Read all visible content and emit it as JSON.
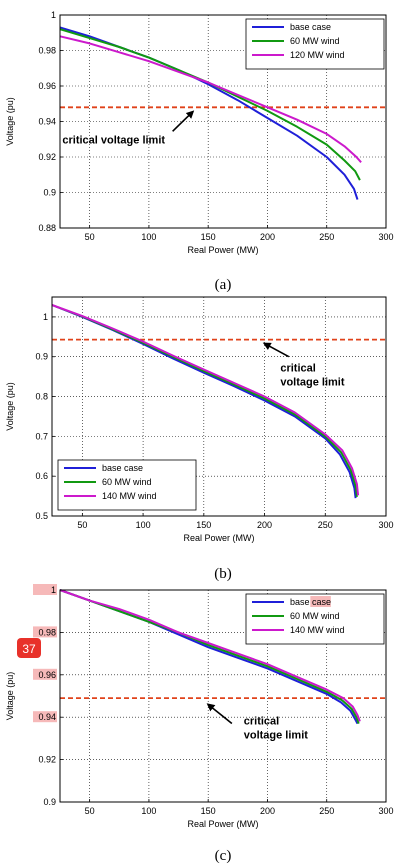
{
  "colors": {
    "base": "#1f1fd8",
    "wind60": "#119911",
    "wind_high": "#cc19cc",
    "limit": "#e0421a",
    "highlight": "#f6b9b9",
    "badge": "#e8312a"
  },
  "badge": {
    "text": "37"
  },
  "chart_data": [
    {
      "type": "line",
      "caption": "(a)",
      "xlabel": "Real Power (MW)",
      "ylabel": "Voltage (pu)",
      "xlim": [
        25,
        300
      ],
      "ylim": [
        0.88,
        1.0
      ],
      "xticks": [
        50,
        100,
        150,
        200,
        250,
        300
      ],
      "xticklabels": [
        "50",
        "100",
        "150",
        "200",
        "250",
        "300"
      ],
      "yticks": [
        0.88,
        0.9,
        0.92,
        0.94,
        0.96,
        0.98,
        1.0
      ],
      "yticklabels": [
        "0.88",
        "0.9",
        "0.92",
        "0.94",
        "0.96",
        "0.98",
        "1"
      ],
      "grid": true,
      "legend_position": "top-right",
      "limit_value": 0.948,
      "annotation": {
        "lines": [
          "critical voltage limit"
        ],
        "text_at": [
          27,
          0.9275
        ],
        "arrow_from": [
          120,
          0.9345
        ],
        "arrow_to": [
          137,
          0.9455
        ]
      },
      "series": [
        {
          "name": "base case",
          "color_key": "base",
          "x": [
            25,
            50,
            75,
            100,
            125,
            150,
            175,
            200,
            225,
            250,
            265,
            273,
            276
          ],
          "y": [
            0.993,
            0.988,
            0.982,
            0.976,
            0.969,
            0.961,
            0.952,
            0.942,
            0.932,
            0.92,
            0.91,
            0.902,
            0.896
          ]
        },
        {
          "name": "60 MW wind",
          "color_key": "wind60",
          "x": [
            25,
            50,
            75,
            100,
            125,
            150,
            175,
            200,
            225,
            250,
            265,
            274,
            278
          ],
          "y": [
            0.992,
            0.987,
            0.982,
            0.976,
            0.969,
            0.962,
            0.954,
            0.946,
            0.937,
            0.927,
            0.918,
            0.912,
            0.907
          ]
        },
        {
          "name": "120 MW wind",
          "color_key": "wind_high",
          "x": [
            25,
            50,
            75,
            100,
            125,
            150,
            175,
            200,
            225,
            250,
            265,
            275,
            279
          ],
          "y": [
            0.988,
            0.984,
            0.979,
            0.974,
            0.968,
            0.962,
            0.955,
            0.948,
            0.941,
            0.933,
            0.926,
            0.92,
            0.917
          ]
        }
      ]
    },
    {
      "type": "line",
      "caption": "(b)",
      "xlabel": "Real Power (MW)",
      "ylabel": "Voltage (pu)",
      "xlim": [
        25,
        300
      ],
      "ylim": [
        0.5,
        1.05
      ],
      "xticks": [
        50,
        100,
        150,
        200,
        250,
        300
      ],
      "xticklabels": [
        "50",
        "100",
        "150",
        "200",
        "250",
        "300"
      ],
      "yticks": [
        0.5,
        0.6,
        0.7,
        0.8,
        0.9,
        1.0
      ],
      "yticklabels": [
        "0.5",
        "0.6",
        "0.7",
        "0.8",
        "0.9",
        "1"
      ],
      "grid": true,
      "legend_position": "bottom-left",
      "limit_value": 0.943,
      "annotation": {
        "lines": [
          "critical",
          "voltage limit"
        ],
        "text_at": [
          213,
          0.863
        ],
        "arrow_from": [
          220,
          0.9
        ],
        "arrow_to": [
          200,
          0.933
        ]
      },
      "series": [
        {
          "name": "base case",
          "color_key": "base",
          "x": [
            25,
            50,
            75,
            100,
            125,
            150,
            175,
            200,
            225,
            250,
            262,
            270,
            274,
            275
          ],
          "y": [
            1.03,
            1.0,
            0.967,
            0.932,
            0.895,
            0.86,
            0.826,
            0.79,
            0.75,
            0.695,
            0.655,
            0.61,
            0.57,
            0.545
          ]
        },
        {
          "name": "60 MW wind",
          "color_key": "wind60",
          "x": [
            25,
            50,
            75,
            100,
            125,
            150,
            175,
            200,
            225,
            250,
            263,
            271,
            275,
            276
          ],
          "y": [
            1.03,
            1.001,
            0.969,
            0.935,
            0.899,
            0.864,
            0.83,
            0.795,
            0.755,
            0.7,
            0.66,
            0.615,
            0.575,
            0.548
          ]
        },
        {
          "name": "140 MW wind",
          "color_key": "wind_high",
          "x": [
            25,
            50,
            75,
            100,
            125,
            150,
            175,
            200,
            225,
            250,
            264,
            272,
            276,
            277
          ],
          "y": [
            1.03,
            1.002,
            0.971,
            0.938,
            0.902,
            0.868,
            0.834,
            0.8,
            0.76,
            0.705,
            0.665,
            0.62,
            0.58,
            0.552
          ]
        }
      ]
    },
    {
      "type": "line",
      "caption": "(c)",
      "xlabel": "Real Power (MW)",
      "ylabel": "Voltage (pu)",
      "xlim": [
        25,
        300
      ],
      "ylim": [
        0.9,
        1.0
      ],
      "xticks": [
        50,
        100,
        150,
        200,
        250,
        300
      ],
      "xticklabels": [
        "50",
        "100",
        "150",
        "200",
        "250",
        "300"
      ],
      "yticks": [
        0.9,
        0.92,
        0.94,
        0.96,
        0.98,
        1.0
      ],
      "yticklabels": [
        "0.9",
        "0.92",
        "0.94",
        "0.96",
        "0.98",
        "1"
      ],
      "highlighted_yticks": [
        0.94,
        0.96,
        0.98,
        1.0
      ],
      "grid": true,
      "legend_position": "top-right",
      "limit_value": 0.949,
      "annotation": {
        "lines": [
          "critical",
          "voltage limit"
        ],
        "text_at": [
          180,
          0.9365
        ],
        "arrow_from": [
          170,
          0.937
        ],
        "arrow_to": [
          150,
          0.946
        ]
      },
      "series": [
        {
          "name": "base case",
          "color_key": "base",
          "x": [
            25,
            50,
            75,
            100,
            125,
            150,
            175,
            200,
            225,
            250,
            262,
            270,
            274,
            276
          ],
          "y": [
            1.0,
            0.995,
            0.99,
            0.985,
            0.979,
            0.973,
            0.968,
            0.963,
            0.957,
            0.951,
            0.947,
            0.943,
            0.939,
            0.937
          ]
        },
        {
          "name": "60 MW wind",
          "color_key": "wind60",
          "x": [
            25,
            50,
            75,
            100,
            125,
            150,
            175,
            200,
            225,
            250,
            263,
            271,
            275,
            277
          ],
          "y": [
            1.0,
            0.995,
            0.99,
            0.985,
            0.98,
            0.974,
            0.969,
            0.964,
            0.958,
            0.952,
            0.948,
            0.944,
            0.94,
            0.937
          ]
        },
        {
          "name": "140 MW wind",
          "color_key": "wind_high",
          "x": [
            25,
            50,
            75,
            100,
            125,
            150,
            175,
            200,
            225,
            250,
            264,
            272,
            276,
            278
          ],
          "y": [
            1.0,
            0.995,
            0.991,
            0.986,
            0.98,
            0.975,
            0.97,
            0.965,
            0.959,
            0.953,
            0.949,
            0.945,
            0.941,
            0.938
          ]
        }
      ]
    }
  ]
}
